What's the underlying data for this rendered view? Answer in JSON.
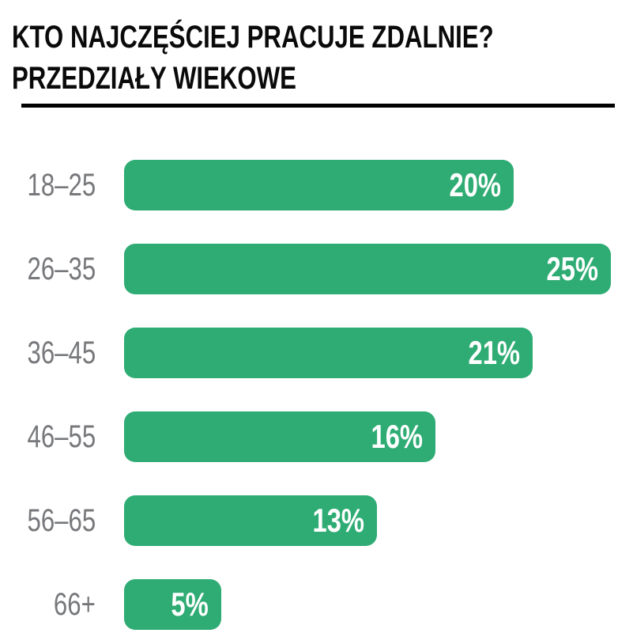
{
  "header": {
    "title_line1": "KTO NAJCZĘŚCIEJ PRACUJE ZDALNIE?",
    "title_line2": "PRZEDZIAŁY WIEKOWE"
  },
  "colors": {
    "bar_green": "#2EAC73",
    "label_gray": "#77787B",
    "title_black": "#0A0A0A",
    "value_white": "#FFFFFF",
    "divider_black": "#000000",
    "background": "#FFFFFF"
  },
  "chart_data": {
    "type": "bar",
    "orientation": "horizontal",
    "title": "KTO NAJCZĘŚCIEJ PRACUJE ZDALNIE?",
    "subtitle": "PRZEDZIAŁY WIEKOWE",
    "categories": [
      "18–25",
      "26–35",
      "36–45",
      "46–55",
      "56–65",
      "66+"
    ],
    "values": [
      20,
      25,
      21,
      16,
      13,
      5
    ],
    "value_labels": [
      "20%",
      "25%",
      "21%",
      "16%",
      "13%",
      "5%"
    ],
    "xlim": [
      0,
      25
    ],
    "grid": false,
    "legend": false,
    "value_label_position": "inside-end",
    "category_label_position": "left"
  }
}
